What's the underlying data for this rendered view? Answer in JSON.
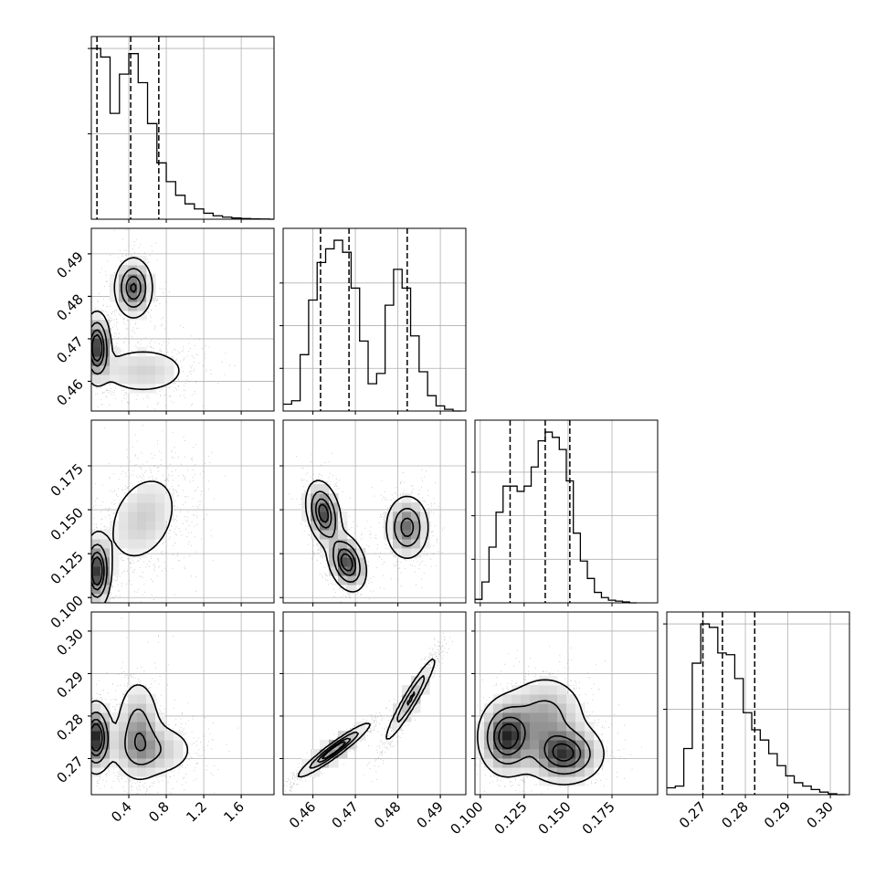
{
  "chart_data": {
    "type": "corner",
    "grid": true,
    "colors": {
      "line": "#000000",
      "grid": "#b0b0b0",
      "frame": "#000000",
      "scatter": "#555555"
    },
    "parameters": [
      {
        "key": "p0",
        "range": [
          0.0,
          1.95
        ],
        "ticks": [
          0.4,
          0.8,
          1.2,
          1.6
        ],
        "tick_labels": [
          "0.4",
          "0.8",
          "1.2",
          "1.6"
        ],
        "quantiles": [
          0.06,
          0.42,
          0.72
        ]
      },
      {
        "key": "p1",
        "range": [
          0.453,
          0.496
        ],
        "ticks": [
          0.46,
          0.47,
          0.48,
          0.49
        ],
        "tick_labels": [
          "0.46",
          "0.47",
          "0.48",
          "0.49"
        ],
        "quantiles": [
          0.4618,
          0.4685,
          0.4822
        ]
      },
      {
        "key": "p2",
        "range": [
          0.097,
          0.201
        ],
        "ticks": [
          0.1,
          0.125,
          0.15,
          0.175
        ],
        "tick_labels": [
          "0.100",
          "0.125",
          "0.150",
          "0.175"
        ],
        "quantiles": [
          0.117,
          0.137,
          0.151
        ]
      },
      {
        "key": "p3",
        "range": [
          0.2615,
          0.3045
        ],
        "ticks": [
          0.27,
          0.28,
          0.29,
          0.3
        ],
        "tick_labels": [
          "0.27",
          "0.28",
          "0.29",
          "0.30"
        ],
        "quantiles": [
          0.27,
          0.2746,
          0.2822
        ]
      }
    ],
    "histograms": [
      {
        "param": "p0",
        "bin_edges": [
          0.0,
          0.1,
          0.2,
          0.3,
          0.4,
          0.5,
          0.6,
          0.7,
          0.8,
          0.9,
          1.0,
          1.1,
          1.2,
          1.3,
          1.4,
          1.5,
          1.6,
          1.7,
          1.8,
          1.9,
          1.95
        ],
        "counts": [
          1.0,
          0.95,
          0.62,
          0.85,
          0.97,
          0.8,
          0.56,
          0.33,
          0.22,
          0.14,
          0.09,
          0.06,
          0.035,
          0.02,
          0.012,
          0.007,
          0.004,
          0.002,
          0.001,
          0.0
        ],
        "yticks": [
          0.5,
          1.0
        ]
      },
      {
        "param": "p1",
        "bin_edges": [
          0.453,
          0.455,
          0.457,
          0.459,
          0.461,
          0.463,
          0.465,
          0.467,
          0.469,
          0.471,
          0.473,
          0.475,
          0.477,
          0.479,
          0.481,
          0.483,
          0.485,
          0.487,
          0.489,
          0.491,
          0.493,
          0.495
        ],
        "counts": [
          0.04,
          0.06,
          0.33,
          0.65,
          0.87,
          0.95,
          1.0,
          0.93,
          0.72,
          0.41,
          0.16,
          0.22,
          0.62,
          0.83,
          0.72,
          0.44,
          0.23,
          0.09,
          0.03,
          0.01,
          0.0
        ],
        "yticks": [
          0.25,
          0.5,
          0.75
        ]
      },
      {
        "param": "p2",
        "bin_edges": [
          0.097,
          0.101,
          0.105,
          0.109,
          0.113,
          0.117,
          0.121,
          0.125,
          0.129,
          0.133,
          0.137,
          0.141,
          0.145,
          0.149,
          0.153,
          0.157,
          0.161,
          0.165,
          0.169,
          0.173,
          0.177,
          0.181,
          0.185,
          0.189
        ],
        "counts": [
          0.02,
          0.12,
          0.32,
          0.52,
          0.67,
          0.67,
          0.64,
          0.67,
          0.78,
          0.93,
          0.98,
          0.95,
          0.88,
          0.7,
          0.4,
          0.24,
          0.14,
          0.06,
          0.03,
          0.015,
          0.01,
          0.005,
          0.0
        ],
        "yticks": [
          0.25,
          0.5,
          0.75
        ]
      },
      {
        "param": "p3",
        "bin_edges": [
          0.2615,
          0.2635,
          0.2655,
          0.2675,
          0.2695,
          0.2715,
          0.2735,
          0.2755,
          0.2775,
          0.2795,
          0.2815,
          0.2835,
          0.2855,
          0.2875,
          0.2895,
          0.2915,
          0.2935,
          0.2955,
          0.2975,
          0.2995,
          0.3015,
          0.3035
        ],
        "counts": [
          0.04,
          0.05,
          0.27,
          0.77,
          1.0,
          0.98,
          0.83,
          0.82,
          0.68,
          0.48,
          0.38,
          0.32,
          0.24,
          0.17,
          0.11,
          0.07,
          0.05,
          0.03,
          0.015,
          0.005,
          0.0
        ],
        "yticks": [
          0.5,
          1.0
        ]
      }
    ],
    "pairs": [
      {
        "x": "p0",
        "y": "p1",
        "clusters": [
          {
            "center": [
              0.45,
              0.482
            ],
            "sigma": [
              0.1,
              0.0035
            ],
            "rho": 0.0,
            "weight": 0.35
          },
          {
            "center": [
              0.06,
              0.468
            ],
            "sigma": [
              0.07,
              0.004
            ],
            "rho": 0.0,
            "weight": 0.35
          },
          {
            "center": [
              0.55,
              0.4625
            ],
            "sigma": [
              0.28,
              0.0032
            ],
            "rho": 0.0,
            "weight": 0.3
          }
        ]
      },
      {
        "x": "p0",
        "y": "p2",
        "clusters": [
          {
            "center": [
              0.55,
              0.145
            ],
            "sigma": [
              0.22,
              0.015
            ],
            "rho": 0.3,
            "weight": 0.55
          },
          {
            "center": [
              0.06,
              0.115
            ],
            "sigma": [
              0.07,
              0.01
            ],
            "rho": 0.0,
            "weight": 0.45
          }
        ]
      },
      {
        "x": "p1",
        "y": "p2",
        "clusters": [
          {
            "center": [
              0.4625,
              0.148
            ],
            "sigma": [
              0.002,
              0.009
            ],
            "rho": -0.3,
            "weight": 0.33
          },
          {
            "center": [
              0.468,
              0.12
            ],
            "sigma": [
              0.0022,
              0.008
            ],
            "rho": -0.3,
            "weight": 0.33
          },
          {
            "center": [
              0.4822,
              0.14
            ],
            "sigma": [
              0.0025,
              0.009
            ],
            "rho": 0.0,
            "weight": 0.34
          }
        ]
      },
      {
        "x": "p0",
        "y": "p3",
        "clusters": [
          {
            "center": [
              0.05,
              0.275
            ],
            "sigma": [
              0.08,
              0.004
            ],
            "rho": 0.0,
            "weight": 0.35
          },
          {
            "center": [
              0.5,
              0.277
            ],
            "sigma": [
              0.12,
              0.006
            ],
            "rho": 0.0,
            "weight": 0.35
          },
          {
            "center": [
              0.65,
              0.272
            ],
            "sigma": [
              0.25,
              0.0035
            ],
            "rho": 0.0,
            "weight": 0.3
          }
        ]
      },
      {
        "x": "p1",
        "y": "p3",
        "clusters": [
          {
            "center": [
              0.465,
              0.272
            ],
            "sigma": [
              0.004,
              0.003
            ],
            "rho": 0.95,
            "weight": 0.55
          },
          {
            "center": [
              0.483,
              0.284
            ],
            "sigma": [
              0.003,
              0.005
            ],
            "rho": 0.95,
            "weight": 0.45
          }
        ]
      },
      {
        "x": "p2",
        "y": "p3",
        "clusters": [
          {
            "center": [
              0.115,
              0.275
            ],
            "sigma": [
              0.008,
              0.0045
            ],
            "rho": 0.0,
            "weight": 0.35
          },
          {
            "center": [
              0.137,
              0.28
            ],
            "sigma": [
              0.012,
              0.005
            ],
            "rho": 0.0,
            "weight": 0.3
          },
          {
            "center": [
              0.148,
              0.271
            ],
            "sigma": [
              0.011,
              0.0035
            ],
            "rho": 0.0,
            "weight": 0.35
          }
        ]
      }
    ],
    "contour_levels": [
      0.118,
      0.393,
      0.675,
      0.865
    ]
  }
}
